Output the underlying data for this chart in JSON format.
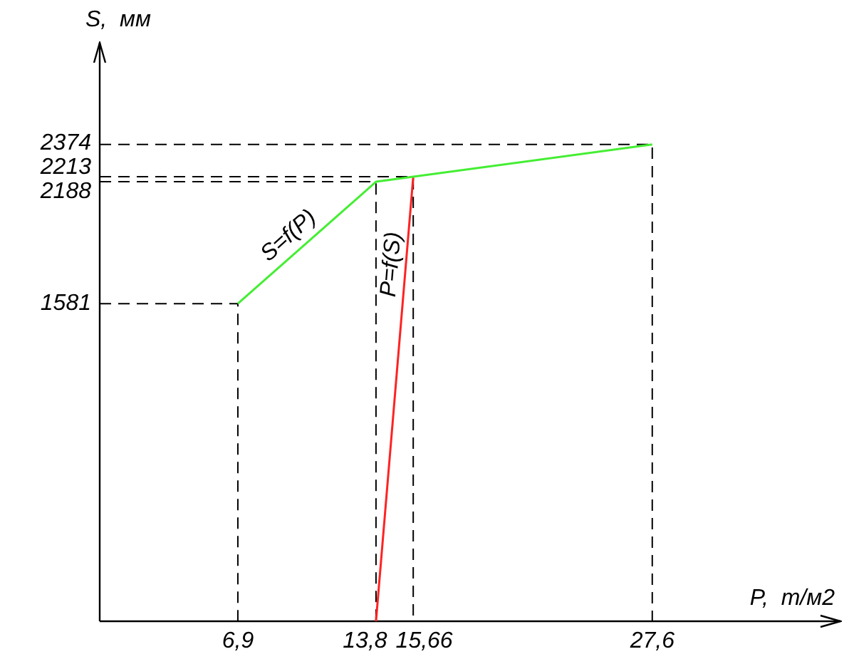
{
  "chart_data": {
    "type": "line",
    "xlabel": "P,  т/м2",
    "ylabel": "S,  мм",
    "xlim": [
      0,
      37
    ],
    "ylim": [
      0,
      2880
    ],
    "xticks": [
      {
        "value": 6.9,
        "label": "6,9"
      },
      {
        "value": 13.8,
        "label": "13,8"
      },
      {
        "value": 15.66,
        "label": "15,66"
      },
      {
        "value": 27.6,
        "label": "27,6"
      }
    ],
    "yticks": [
      1581,
      2188,
      2213,
      2374
    ],
    "series": [
      {
        "color": "#44ee33",
        "x": [
          6.9,
          13.8,
          15.66,
          27.6
        ],
        "values": [
          1581,
          2188,
          2213,
          2374
        ]
      },
      {
        "color": "#ff2222",
        "x": [
          13.8,
          15.66
        ],
        "values": [
          0,
          2213
        ]
      },
      {
        "color": "#000000",
        "line_style": "dashed",
        "x": [
          0,
          6.9,
          6.9
        ],
        "values": [
          1581,
          1581,
          0
        ]
      },
      {
        "color": "#000000",
        "line_style": "dashed",
        "x": [
          0,
          13.8,
          13.8
        ],
        "values": [
          2188,
          2188,
          0
        ]
      },
      {
        "color": "#000000",
        "line_style": "dashed",
        "x": [
          0,
          15.66,
          15.66
        ],
        "values": [
          2213,
          2213,
          0
        ]
      },
      {
        "color": "#000000",
        "line_style": "dashed",
        "x": [
          0,
          27.6,
          27.6
        ],
        "values": [
          2374,
          2374,
          0
        ]
      }
    ],
    "annotations": [
      "S=f(P)",
      "P=f(S)"
    ],
    "grid": false,
    "legend": false,
    "marker": "none",
    "line_style": "solid"
  }
}
